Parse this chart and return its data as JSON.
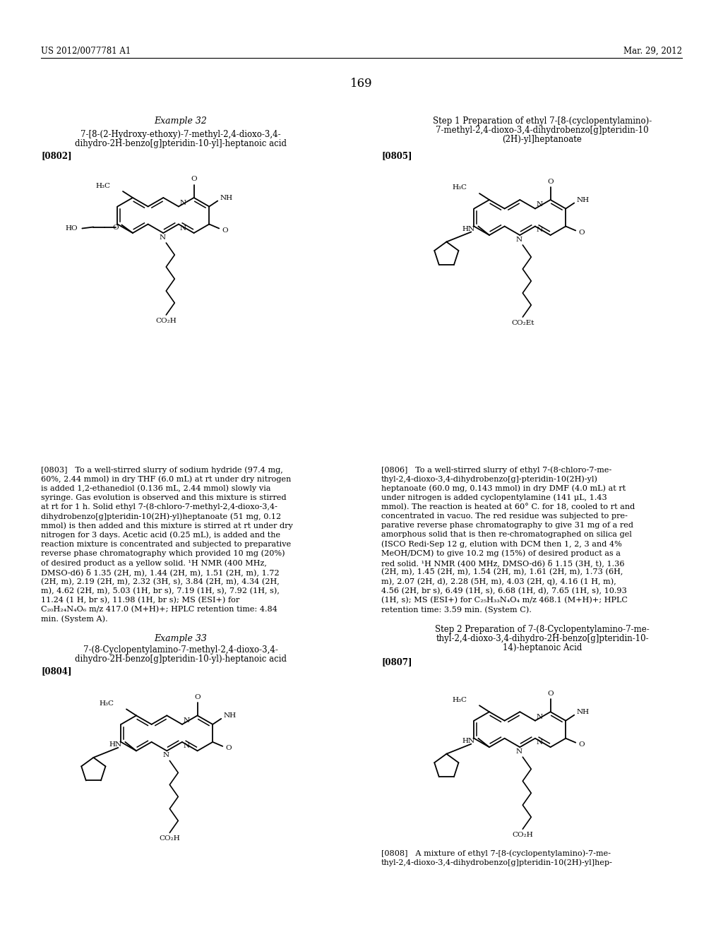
{
  "background_color": "#ffffff",
  "page_number": "169",
  "header_left": "US 2012/0077781 A1",
  "header_right": "Mar. 29, 2012",
  "left_col_example_title": "Example 32",
  "left_col_compound_name1": "7-[8-(2-Hydroxy-ethoxy)-7-methyl-2,4-dioxo-3,4-",
  "left_col_compound_name2": "dihydro-2H-benzo[g]pteridin-10-yl]-heptanoic acid",
  "tag_0802": "[0802]",
  "para_0803_lines": [
    "[0803]   To a well-stirred slurry of sodium hydride (97.4 mg,",
    "60%, 2.44 mmol) in dry THF (6.0 mL) at rt under dry nitrogen",
    "is added 1,2-ethanediol (0.136 mL, 2.44 mmol) slowly via",
    "syringe. Gas evolution is observed and this mixture is stirred",
    "at rt for 1 h. Solid ethyl 7-(8-chloro-7-methyl-2,4-dioxo-3,4-",
    "dihydrobenzo[g]pteridin-10(2H)-yl)heptanoate (51 mg, 0.12",
    "mmol) is then added and this mixture is stirred at rt under dry",
    "nitrogen for 3 days. Acetic acid (0.25 mL), is added and the",
    "reaction mixture is concentrated and subjected to preparative",
    "reverse phase chromatography which provided 10 mg (20%)",
    "of desired product as a yellow solid. ¹H NMR (400 MHz,",
    "DMSO-d6) δ 1.35 (2H, m), 1.44 (2H, m), 1.51 (2H, m), 1.72",
    "(2H, m), 2.19 (2H, m), 2.32 (3H, s), 3.84 (2H, m), 4.34 (2H,",
    "m), 4.62 (2H, m), 5.03 (1H, br s), 7.19 (1H, s), 7.92 (1H, s),",
    "11.24 (1 H, br s), 11.98 (1H, br s); MS (ESI+) for",
    "C₂₀H₂₄N₄O₆ m/z 417.0 (M+H)+; HPLC retention time: 4.84",
    "min. (System A)."
  ],
  "left_col_example2_title": "Example 33",
  "left_col_compound2_name1": "7-(8-Cyclopentylamino-7-methyl-2,4-dioxo-3,4-",
  "left_col_compound2_name2": "dihydro-2H-benzo[g]pteridin-10-yl)-heptanoic acid",
  "tag_0804": "[0804]",
  "right_col_step1_lines": [
    "Step 1 Preparation of ethyl 7-[8-(cyclopentylamino)-",
    "7-methyl-2,4-dioxo-3,4-dihydrobenzo[g]pteridin-10",
    "(2H)-yl]heptanoate"
  ],
  "tag_0805": "[0805]",
  "para_0806_lines": [
    "[0806]   To a well-stirred slurry of ethyl 7-(8-chloro-7-me-",
    "thyl-2,4-dioxo-3,4-dihydrobenzo[g]-pteridin-10(2H)-yl)",
    "heptanoate (60.0 mg, 0.143 mmol) in dry DMF (4.0 mL) at rt",
    "under nitrogen is added cyclopentylamine (141 μL, 1.43",
    "mmol). The reaction is heated at 60° C. for 18, cooled to rt and",
    "concentrated in vacuo. The red residue was subjected to pre-",
    "parative reverse phase chromatography to give 31 mg of a red",
    "amorphous solid that is then re-chromatographed on silica gel",
    "(ISCO Redi-Sep 12 g, elution with DCM then 1, 2, 3 and 4%",
    "MeOH/DCM) to give 10.2 mg (15%) of desired product as a",
    "red solid. ¹H NMR (400 MHz, DMSO-d6) δ 1.15 (3H, t), 1.36",
    "(2H, m), 1.45 (2H, m), 1.54 (2H, m), 1.61 (2H, m), 1.73 (6H,",
    "m), 2.07 (2H, d), 2.28 (5H, m), 4.03 (2H, q), 4.16 (1 H, m),",
    "4.56 (2H, br s), 6.49 (1H, s), 6.68 (1H, d), 7.65 (1H, s), 10.93",
    "(1H, s); MS (ESI+) for C₂₅H₃₃N₄O₄ m/z 468.1 (M+H)+; HPLC",
    "retention time: 3.59 min. (System C)."
  ],
  "right_col_step2_lines": [
    "Step 2 Preparation of 7-(8-Cyclopentylamino-7-me-",
    "thyl-2,4-dioxo-3,4-dihydro-2H-benzo[g]pteridin-10-",
    "14)-heptanoic Acid"
  ],
  "tag_0807": "[0807]",
  "para_0808_lines": [
    "[0808]   A mixture of ethyl 7-[8-(cyclopentylamino)-7-me-",
    "thyl-2,4-dioxo-3,4-dihydrobenzo[g]pteridin-10(2H)-yl]hep-"
  ]
}
